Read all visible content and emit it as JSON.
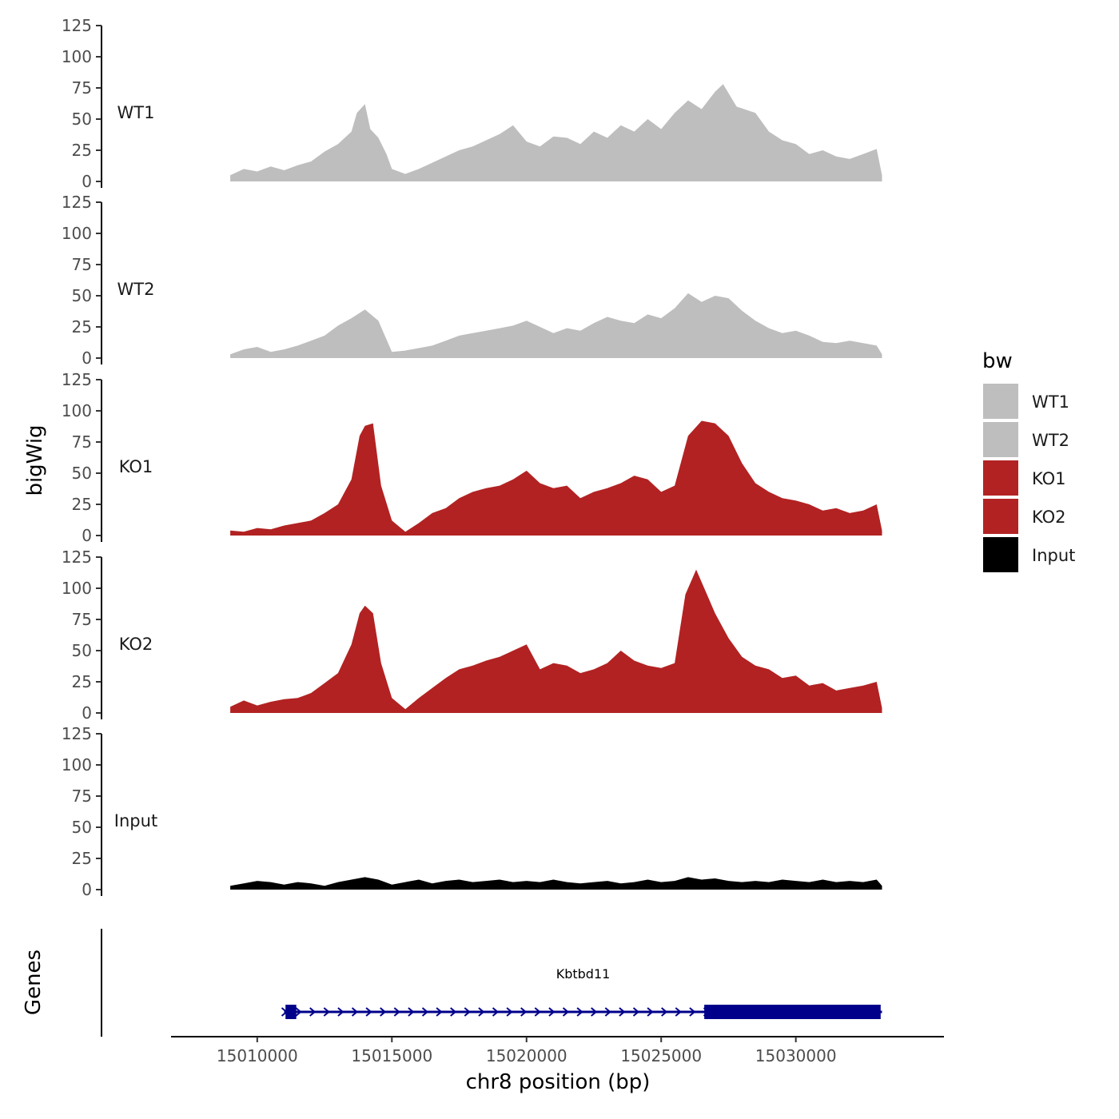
{
  "chart_data": {
    "type": "area",
    "chromosome_axis_label": "chr8 position (bp)",
    "y_axis_label": "bigWig",
    "genes_axis_label": "Genes",
    "x_range": [
      15009000,
      15033200
    ],
    "xlim": [
      15006800,
      15035500
    ],
    "x_ticks": [
      15010000,
      15015000,
      15020000,
      15025000,
      15030000
    ],
    "x_tick_labels": [
      "15010000",
      "15015000",
      "15020000",
      "15025000",
      "15030000"
    ],
    "ylim": [
      0,
      125
    ],
    "y_ticks": [
      0,
      25,
      50,
      75,
      100,
      125
    ],
    "y_tick_labels": [
      "0",
      "25",
      "50",
      "75",
      "100",
      "125"
    ],
    "legend": {
      "title": "bw",
      "entries": [
        {
          "label": "WT1",
          "color": "#bebebe"
        },
        {
          "label": "WT2",
          "color": "#bebebe"
        },
        {
          "label": "KO1",
          "color": "#b22222"
        },
        {
          "label": "KO2",
          "color": "#b22222"
        },
        {
          "label": "Input",
          "color": "#000000"
        }
      ]
    },
    "series": [
      {
        "name": "WT1",
        "color": "#bebebe",
        "points": [
          [
            15009000,
            5
          ],
          [
            15009500,
            10
          ],
          [
            15010000,
            8
          ],
          [
            15010500,
            12
          ],
          [
            15011000,
            9
          ],
          [
            15011500,
            13
          ],
          [
            15012000,
            16
          ],
          [
            15012500,
            24
          ],
          [
            15013000,
            30
          ],
          [
            15013500,
            40
          ],
          [
            15013700,
            55
          ],
          [
            15014000,
            62
          ],
          [
            15014200,
            42
          ],
          [
            15014500,
            35
          ],
          [
            15014800,
            22
          ],
          [
            15015000,
            10
          ],
          [
            15015500,
            6
          ],
          [
            15016000,
            10
          ],
          [
            15016500,
            15
          ],
          [
            15017000,
            20
          ],
          [
            15017500,
            25
          ],
          [
            15018000,
            28
          ],
          [
            15018500,
            33
          ],
          [
            15019000,
            38
          ],
          [
            15019500,
            45
          ],
          [
            15020000,
            32
          ],
          [
            15020500,
            28
          ],
          [
            15021000,
            36
          ],
          [
            15021500,
            35
          ],
          [
            15022000,
            30
          ],
          [
            15022500,
            40
          ],
          [
            15023000,
            35
          ],
          [
            15023500,
            45
          ],
          [
            15024000,
            40
          ],
          [
            15024500,
            50
          ],
          [
            15025000,
            42
          ],
          [
            15025500,
            55
          ],
          [
            15026000,
            65
          ],
          [
            15026500,
            58
          ],
          [
            15027000,
            72
          ],
          [
            15027300,
            78
          ],
          [
            15027800,
            60
          ],
          [
            15028500,
            55
          ],
          [
            15029000,
            40
          ],
          [
            15029500,
            33
          ],
          [
            15030000,
            30
          ],
          [
            15030500,
            22
          ],
          [
            15031000,
            25
          ],
          [
            15031500,
            20
          ],
          [
            15032000,
            18
          ],
          [
            15032500,
            22
          ],
          [
            15033000,
            26
          ],
          [
            15033200,
            5
          ]
        ]
      },
      {
        "name": "WT2",
        "color": "#bebebe",
        "points": [
          [
            15009000,
            3
          ],
          [
            15009500,
            7
          ],
          [
            15010000,
            9
          ],
          [
            15010500,
            5
          ],
          [
            15011000,
            7
          ],
          [
            15011500,
            10
          ],
          [
            15012000,
            14
          ],
          [
            15012500,
            18
          ],
          [
            15013000,
            26
          ],
          [
            15013500,
            32
          ],
          [
            15014000,
            39
          ],
          [
            15014500,
            30
          ],
          [
            15014800,
            15
          ],
          [
            15015000,
            5
          ],
          [
            15015500,
            6
          ],
          [
            15016000,
            8
          ],
          [
            15016500,
            10
          ],
          [
            15017000,
            14
          ],
          [
            15017500,
            18
          ],
          [
            15018000,
            20
          ],
          [
            15018500,
            22
          ],
          [
            15019000,
            24
          ],
          [
            15019500,
            26
          ],
          [
            15020000,
            30
          ],
          [
            15020500,
            25
          ],
          [
            15021000,
            20
          ],
          [
            15021500,
            24
          ],
          [
            15022000,
            22
          ],
          [
            15022500,
            28
          ],
          [
            15023000,
            33
          ],
          [
            15023500,
            30
          ],
          [
            15024000,
            28
          ],
          [
            15024500,
            35
          ],
          [
            15025000,
            32
          ],
          [
            15025500,
            40
          ],
          [
            15026000,
            52
          ],
          [
            15026500,
            45
          ],
          [
            15027000,
            50
          ],
          [
            15027500,
            48
          ],
          [
            15028000,
            38
          ],
          [
            15028500,
            30
          ],
          [
            15029000,
            24
          ],
          [
            15029500,
            20
          ],
          [
            15030000,
            22
          ],
          [
            15030500,
            18
          ],
          [
            15031000,
            13
          ],
          [
            15031500,
            12
          ],
          [
            15032000,
            14
          ],
          [
            15032500,
            12
          ],
          [
            15033000,
            10
          ],
          [
            15033200,
            3
          ]
        ]
      },
      {
        "name": "KO1",
        "color": "#b22222",
        "points": [
          [
            15009000,
            4
          ],
          [
            15009500,
            3
          ],
          [
            15010000,
            6
          ],
          [
            15010500,
            5
          ],
          [
            15011000,
            8
          ],
          [
            15011500,
            10
          ],
          [
            15012000,
            12
          ],
          [
            15012500,
            18
          ],
          [
            15013000,
            25
          ],
          [
            15013500,
            45
          ],
          [
            15013800,
            80
          ],
          [
            15014000,
            88
          ],
          [
            15014300,
            90
          ],
          [
            15014600,
            40
          ],
          [
            15015000,
            12
          ],
          [
            15015500,
            3
          ],
          [
            15016000,
            10
          ],
          [
            15016500,
            18
          ],
          [
            15017000,
            22
          ],
          [
            15017500,
            30
          ],
          [
            15018000,
            35
          ],
          [
            15018500,
            38
          ],
          [
            15019000,
            40
          ],
          [
            15019500,
            45
          ],
          [
            15020000,
            52
          ],
          [
            15020500,
            42
          ],
          [
            15021000,
            38
          ],
          [
            15021500,
            40
          ],
          [
            15022000,
            30
          ],
          [
            15022500,
            35
          ],
          [
            15023000,
            38
          ],
          [
            15023500,
            42
          ],
          [
            15024000,
            48
          ],
          [
            15024500,
            45
          ],
          [
            15025000,
            35
          ],
          [
            15025500,
            40
          ],
          [
            15026000,
            80
          ],
          [
            15026500,
            92
          ],
          [
            15027000,
            90
          ],
          [
            15027500,
            80
          ],
          [
            15028000,
            58
          ],
          [
            15028500,
            42
          ],
          [
            15029000,
            35
          ],
          [
            15029500,
            30
          ],
          [
            15030000,
            28
          ],
          [
            15030500,
            25
          ],
          [
            15031000,
            20
          ],
          [
            15031500,
            22
          ],
          [
            15032000,
            18
          ],
          [
            15032500,
            20
          ],
          [
            15033000,
            25
          ],
          [
            15033200,
            4
          ]
        ]
      },
      {
        "name": "KO2",
        "color": "#b22222",
        "points": [
          [
            15009000,
            5
          ],
          [
            15009500,
            10
          ],
          [
            15010000,
            6
          ],
          [
            15010500,
            9
          ],
          [
            15011000,
            11
          ],
          [
            15011500,
            12
          ],
          [
            15012000,
            16
          ],
          [
            15012500,
            24
          ],
          [
            15013000,
            32
          ],
          [
            15013500,
            55
          ],
          [
            15013800,
            80
          ],
          [
            15014000,
            86
          ],
          [
            15014300,
            80
          ],
          [
            15014600,
            40
          ],
          [
            15015000,
            12
          ],
          [
            15015500,
            3
          ],
          [
            15016000,
            12
          ],
          [
            15016500,
            20
          ],
          [
            15017000,
            28
          ],
          [
            15017500,
            35
          ],
          [
            15018000,
            38
          ],
          [
            15018500,
            42
          ],
          [
            15019000,
            45
          ],
          [
            15019500,
            50
          ],
          [
            15020000,
            55
          ],
          [
            15020500,
            35
          ],
          [
            15021000,
            40
          ],
          [
            15021500,
            38
          ],
          [
            15022000,
            32
          ],
          [
            15022500,
            35
          ],
          [
            15023000,
            40
          ],
          [
            15023500,
            50
          ],
          [
            15024000,
            42
          ],
          [
            15024500,
            38
          ],
          [
            15025000,
            36
          ],
          [
            15025500,
            40
          ],
          [
            15025900,
            95
          ],
          [
            15026300,
            115
          ],
          [
            15026700,
            95
          ],
          [
            15027000,
            80
          ],
          [
            15027500,
            60
          ],
          [
            15028000,
            45
          ],
          [
            15028500,
            38
          ],
          [
            15029000,
            35
          ],
          [
            15029500,
            28
          ],
          [
            15030000,
            30
          ],
          [
            15030500,
            22
          ],
          [
            15031000,
            24
          ],
          [
            15031500,
            18
          ],
          [
            15032000,
            20
          ],
          [
            15032500,
            22
          ],
          [
            15033000,
            25
          ],
          [
            15033200,
            4
          ]
        ]
      },
      {
        "name": "Input",
        "color": "#000000",
        "points": [
          [
            15009000,
            3
          ],
          [
            15009500,
            5
          ],
          [
            15010000,
            7
          ],
          [
            15010500,
            6
          ],
          [
            15011000,
            4
          ],
          [
            15011500,
            6
          ],
          [
            15012000,
            5
          ],
          [
            15012500,
            3
          ],
          [
            15013000,
            6
          ],
          [
            15013500,
            8
          ],
          [
            15014000,
            10
          ],
          [
            15014500,
            8
          ],
          [
            15015000,
            4
          ],
          [
            15015500,
            6
          ],
          [
            15016000,
            8
          ],
          [
            15016500,
            5
          ],
          [
            15017000,
            7
          ],
          [
            15017500,
            8
          ],
          [
            15018000,
            6
          ],
          [
            15018500,
            7
          ],
          [
            15019000,
            8
          ],
          [
            15019500,
            6
          ],
          [
            15020000,
            7
          ],
          [
            15020500,
            6
          ],
          [
            15021000,
            8
          ],
          [
            15021500,
            6
          ],
          [
            15022000,
            5
          ],
          [
            15022500,
            6
          ],
          [
            15023000,
            7
          ],
          [
            15023500,
            5
          ],
          [
            15024000,
            6
          ],
          [
            15024500,
            8
          ],
          [
            15025000,
            6
          ],
          [
            15025500,
            7
          ],
          [
            15026000,
            10
          ],
          [
            15026500,
            8
          ],
          [
            15027000,
            9
          ],
          [
            15027500,
            7
          ],
          [
            15028000,
            6
          ],
          [
            15028500,
            7
          ],
          [
            15029000,
            6
          ],
          [
            15029500,
            8
          ],
          [
            15030000,
            7
          ],
          [
            15030500,
            6
          ],
          [
            15031000,
            8
          ],
          [
            15031500,
            6
          ],
          [
            15032000,
            7
          ],
          [
            15032500,
            6
          ],
          [
            15033000,
            8
          ],
          [
            15033200,
            3
          ]
        ]
      }
    ],
    "gene": {
      "name": "Kbtbd11",
      "strand": "+",
      "color": "#00008b",
      "start": 15011000,
      "end": 15033200,
      "exons": [
        [
          15011050,
          15011450
        ],
        [
          15026600,
          15033150
        ]
      ]
    }
  }
}
